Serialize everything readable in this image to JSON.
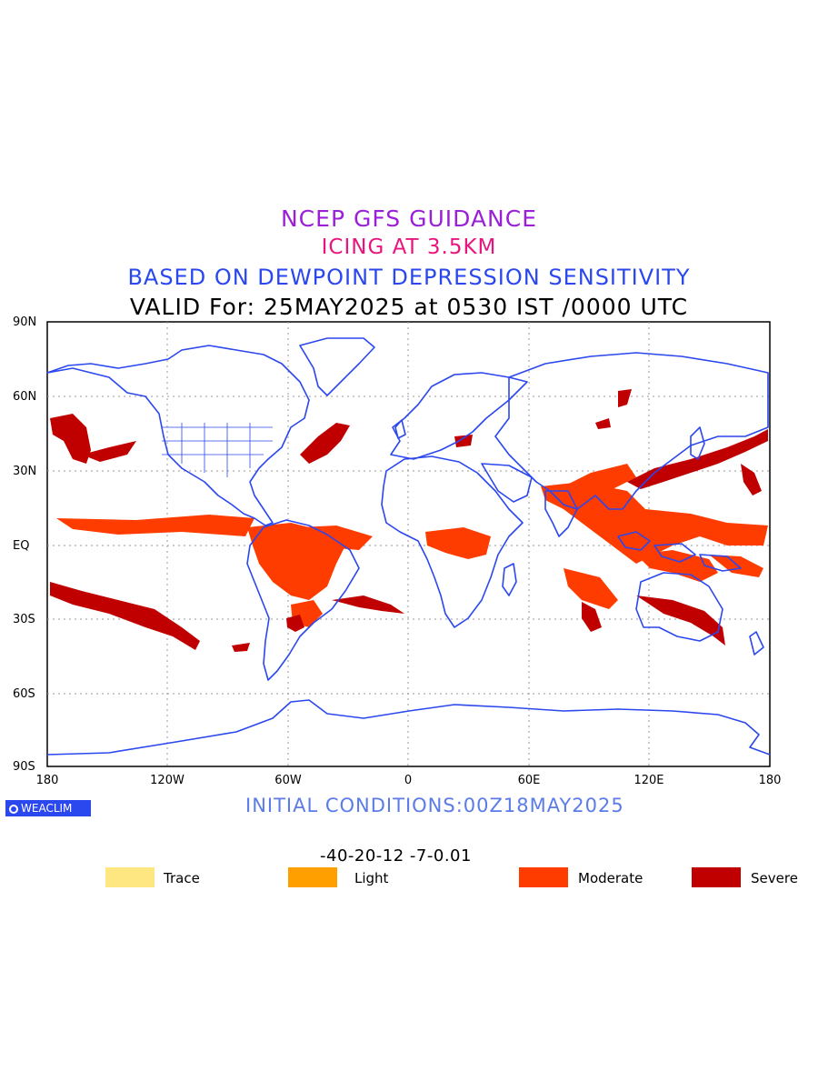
{
  "titles": {
    "line1": "NCEP GFS GUIDANCE",
    "line2": "ICING AT 3.5KM",
    "line3": "BASED ON DEWPOINT DEPRESSION SENSITIVITY",
    "line4": "VALID For: 25MAY2025 at 0530 IST /0000 UTC"
  },
  "axes": {
    "lat_labels": [
      "90N",
      "60N",
      "30N",
      "EQ",
      "30S",
      "60S",
      "90S"
    ],
    "lon_labels": [
      "180",
      "120W",
      "60W",
      "0",
      "60E",
      "120E",
      "180"
    ]
  },
  "logo": "WEACLIM",
  "initial_conditions": "INITIAL CONDITIONS:00Z18MAY2025",
  "colorbar": {
    "ticks": "-40-20-12 -7-0.01",
    "colors": [
      "#fee680",
      "#ffa000",
      "#ff3c00",
      "#c00000"
    ]
  },
  "legend": [
    {
      "label": "Trace",
      "color": "#fee680"
    },
    {
      "label": "Light",
      "color": "#ffa000"
    },
    {
      "label": "Moderate",
      "color": "#ff3c00"
    },
    {
      "label": "Severe",
      "color": "#c00000"
    }
  ],
  "colors": {
    "coastline": "#2b47ee",
    "grid": "#9a9a9a"
  }
}
